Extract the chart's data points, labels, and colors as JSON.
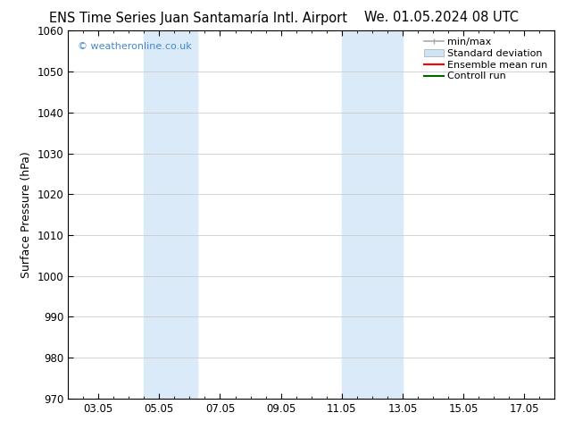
{
  "title_left": "ENS Time Series Juan Santamaría Intl. Airport",
  "title_right": "We. 01.05.2024 08 UTC",
  "ylabel": "Surface Pressure (hPa)",
  "ylim": [
    970,
    1060
  ],
  "yticks": [
    970,
    980,
    990,
    1000,
    1010,
    1020,
    1030,
    1040,
    1050,
    1060
  ],
  "xlim": [
    2.0,
    18.0
  ],
  "xtick_labels": [
    "03.05",
    "05.05",
    "07.05",
    "09.05",
    "11.05",
    "13.05",
    "15.05",
    "17.05"
  ],
  "xtick_positions": [
    3,
    5,
    7,
    9,
    11,
    13,
    15,
    17
  ],
  "shaded_bands": [
    {
      "x_start": 4.5,
      "x_end": 5.5
    },
    {
      "x_start": 5.5,
      "x_end": 6.25
    },
    {
      "x_start": 11.0,
      "x_end": 12.0
    },
    {
      "x_start": 12.0,
      "x_end": 13.0
    }
  ],
  "band_color": "#daeaf8",
  "watermark_text": "© weatheronline.co.uk",
  "watermark_color": "#4488cc",
  "bg_color": "#ffffff",
  "grid_color": "#cccccc",
  "title_fontsize": 10.5,
  "axis_label_fontsize": 9,
  "tick_fontsize": 8.5,
  "legend_fontsize": 8
}
